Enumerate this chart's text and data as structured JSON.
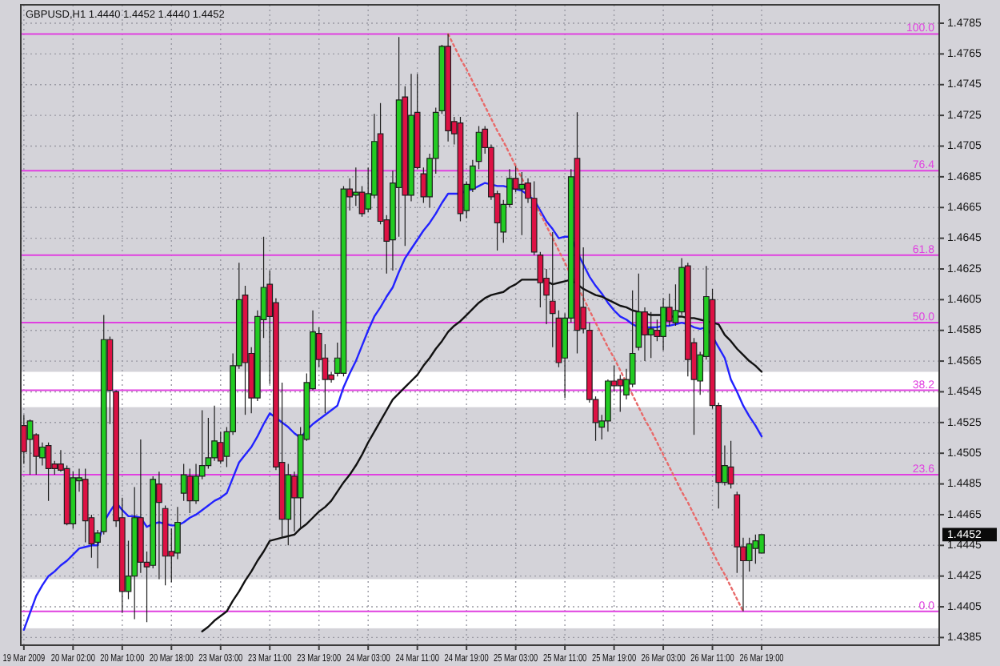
{
  "chart_data": {
    "type": "candlestick",
    "title": "GBPUSD,H1 1.4440 1.4452 1.4440 1.4452",
    "categories": [
      "19 Mar 2009",
      null,
      null,
      null,
      null,
      null,
      null,
      null,
      "20 Mar 02:00",
      null,
      null,
      null,
      null,
      null,
      null,
      null,
      "20 Mar 10:00",
      null,
      null,
      null,
      null,
      null,
      null,
      null,
      "20 Mar 18:00",
      null,
      null,
      null,
      null,
      null,
      null,
      null,
      "23 Mar 03:00",
      null,
      null,
      null,
      null,
      null,
      null,
      null,
      "23 Mar 11:00",
      null,
      null,
      null,
      null,
      null,
      null,
      null,
      "23 Mar 19:00",
      null,
      null,
      null,
      null,
      null,
      null,
      null,
      "24 Mar 03:00",
      null,
      null,
      null,
      null,
      null,
      null,
      null,
      "24 Mar 11:00",
      null,
      null,
      null,
      null,
      null,
      null,
      null,
      "24 Mar 19:00",
      null,
      null,
      null,
      null,
      null,
      null,
      null,
      "25 Mar 03:00",
      null,
      null,
      null,
      null,
      null,
      null,
      null,
      "25 Mar 11:00",
      null,
      null,
      null,
      null,
      null,
      null,
      null,
      "25 Mar 19:00",
      null,
      null,
      null,
      null,
      null,
      null,
      null,
      "26 Mar 03:00",
      null,
      null,
      null,
      null,
      null,
      null,
      null,
      "26 Mar 11:00",
      null,
      null,
      null,
      null,
      null,
      null,
      null,
      "26 Mar 19:00"
    ],
    "ohlc": [
      [
        1.4523,
        1.453,
        1.4498,
        1.4506
      ],
      [
        1.4514,
        1.4527,
        1.4491,
        1.4526
      ],
      [
        1.4517,
        1.4518,
        1.4491,
        1.4503
      ],
      [
        1.4502,
        1.4512,
        1.4497,
        1.4509
      ],
      [
        1.451,
        1.4512,
        1.4474,
        1.4495
      ],
      [
        1.4498,
        1.45,
        1.4491,
        1.4495
      ],
      [
        1.4498,
        1.4507,
        1.4493,
        1.4494
      ],
      [
        1.4495,
        1.4497,
        1.4458,
        1.4459
      ],
      [
        1.4459,
        1.4493,
        1.4456,
        1.4489
      ],
      [
        1.4487,
        1.4495,
        1.448,
        1.4489
      ],
      [
        1.4488,
        1.4495,
        1.4447,
        1.4461
      ],
      [
        1.4463,
        1.4465,
        1.4437,
        1.4446
      ],
      [
        1.4447,
        1.4455,
        1.443,
        1.4453
      ],
      [
        1.4454,
        1.4595,
        1.4452,
        1.4579
      ],
      [
        1.4579,
        1.4581,
        1.4524,
        1.4546
      ],
      [
        1.4545,
        1.4546,
        1.4457,
        1.4461
      ],
      [
        1.4463,
        1.4476,
        1.4401,
        1.4415
      ],
      [
        1.4415,
        1.4448,
        1.441,
        1.4425
      ],
      [
        1.4425,
        1.4483,
        1.4397,
        1.4463
      ],
      [
        1.4463,
        1.4514,
        1.4427,
        1.4434
      ],
      [
        1.4434,
        1.4441,
        1.4395,
        1.4431
      ],
      [
        1.4432,
        1.449,
        1.443,
        1.4488
      ],
      [
        1.4485,
        1.4493,
        1.4423,
        1.4473
      ],
      [
        1.4469,
        1.4471,
        1.4419,
        1.4438
      ],
      [
        1.4441,
        1.4456,
        1.4421,
        1.4438
      ],
      [
        1.444,
        1.447,
        1.4436,
        1.446
      ],
      [
        1.4479,
        1.4498,
        1.4474,
        1.4491
      ],
      [
        1.449,
        1.4495,
        1.4466,
        1.4474
      ],
      [
        1.4474,
        1.4498,
        1.4472,
        1.449
      ],
      [
        1.449,
        1.4533,
        1.4488,
        1.4497
      ],
      [
        1.4497,
        1.4528,
        1.4495,
        1.4502
      ],
      [
        1.4502,
        1.4536,
        1.45,
        1.4513
      ],
      [
        1.4512,
        1.4519,
        1.4498,
        1.45
      ],
      [
        1.4503,
        1.4522,
        1.4496,
        1.4519
      ],
      [
        1.4519,
        1.457,
        1.4517,
        1.4562
      ],
      [
        1.4562,
        1.4629,
        1.456,
        1.4605
      ],
      [
        1.4608,
        1.4614,
        1.453,
        1.4564
      ],
      [
        1.457,
        1.4574,
        1.4531,
        1.4541
      ],
      [
        1.4541,
        1.4598,
        1.4539,
        1.4594
      ],
      [
        1.4592,
        1.4646,
        1.458,
        1.4613
      ],
      [
        1.4615,
        1.4624,
        1.455,
        1.4594
      ],
      [
        1.4603,
        1.4606,
        1.4494,
        1.4496
      ],
      [
        1.4499,
        1.4551,
        1.445,
        1.4462
      ],
      [
        1.4462,
        1.4498,
        1.4445,
        1.4491
      ],
      [
        1.449,
        1.4493,
        1.4454,
        1.4476
      ],
      [
        1.4476,
        1.4522,
        1.4456,
        1.4517
      ],
      [
        1.4514,
        1.4557,
        1.4513,
        1.4551
      ],
      [
        1.4547,
        1.4598,
        1.4546,
        1.4584
      ],
      [
        1.4583,
        1.4587,
        1.4561,
        1.4566
      ],
      [
        1.4567,
        1.4576,
        1.4531,
        1.4553
      ],
      [
        1.4556,
        1.4558,
        1.4551,
        1.4553
      ],
      [
        1.4557,
        1.4577,
        1.4555,
        1.4567
      ],
      [
        1.4557,
        1.4679,
        1.4555,
        1.4677
      ],
      [
        1.4677,
        1.4684,
        1.4663,
        1.4672
      ],
      [
        1.4673,
        1.4691,
        1.4666,
        1.4675
      ],
      [
        1.4675,
        1.4679,
        1.4659,
        1.4661
      ],
      [
        1.4664,
        1.4691,
        1.4662,
        1.4674
      ],
      [
        1.4673,
        1.4726,
        1.4671,
        1.4708
      ],
      [
        1.4713,
        1.4733,
        1.4654,
        1.4656
      ],
      [
        1.4657,
        1.466,
        1.4622,
        1.4643
      ],
      [
        1.4644,
        1.4689,
        1.4624,
        1.4681
      ],
      [
        1.4678,
        1.4776,
        1.4646,
        1.4735
      ],
      [
        1.4737,
        1.4744,
        1.464,
        1.4673
      ],
      [
        1.4673,
        1.4752,
        1.4669,
        1.4725
      ],
      [
        1.4727,
        1.4752,
        1.469,
        1.4691
      ],
      [
        1.4687,
        1.4691,
        1.4668,
        1.4672
      ],
      [
        1.4672,
        1.47,
        1.4665,
        1.4697
      ],
      [
        1.4697,
        1.473,
        1.4687,
        1.4727
      ],
      [
        1.4728,
        1.4771,
        1.4726,
        1.477
      ],
      [
        1.477,
        1.4778,
        1.4708,
        1.4715
      ],
      [
        1.4721,
        1.4724,
        1.4706,
        1.4713
      ],
      [
        1.472,
        1.4724,
        1.4656,
        1.4661
      ],
      [
        1.4663,
        1.4682,
        1.4658,
        1.468
      ],
      [
        1.4677,
        1.4696,
        1.4675,
        1.4692
      ],
      [
        1.4695,
        1.4718,
        1.469,
        1.4714
      ],
      [
        1.4716,
        1.4718,
        1.47,
        1.4704
      ],
      [
        1.4704,
        1.4706,
        1.467,
        1.4672
      ],
      [
        1.4674,
        1.4676,
        1.4637,
        1.4655
      ],
      [
        1.4649,
        1.467,
        1.4642,
        1.4667
      ],
      [
        1.4667,
        1.469,
        1.4665,
        1.4684
      ],
      [
        1.4684,
        1.4692,
        1.4675,
        1.4677
      ],
      [
        1.4677,
        1.4688,
        1.4647,
        1.468
      ],
      [
        1.4681,
        1.4684,
        1.4668,
        1.4671
      ],
      [
        1.4671,
        1.4682,
        1.4634,
        1.4636
      ],
      [
        1.4634,
        1.4636,
        1.46,
        1.4616
      ],
      [
        1.4619,
        1.4625,
        1.4589,
        1.4608
      ],
      [
        1.4604,
        1.4649,
        1.4574,
        1.4596
      ],
      [
        1.4593,
        1.4598,
        1.4561,
        1.4564
      ],
      [
        1.4567,
        1.4596,
        1.4541,
        1.4593
      ],
      [
        1.4593,
        1.469,
        1.459,
        1.4685
      ],
      [
        1.4697,
        1.4727,
        1.457,
        1.4585
      ],
      [
        1.46,
        1.4639,
        1.4583,
        1.4586
      ],
      [
        1.4585,
        1.459,
        1.4538,
        1.454
      ],
      [
        1.454,
        1.4542,
        1.4513,
        1.4525
      ],
      [
        1.4522,
        1.453,
        1.4514,
        1.4526
      ],
      [
        1.4526,
        1.4553,
        1.4519,
        1.4552
      ],
      [
        1.4552,
        1.4562,
        1.4545,
        1.4549
      ],
      [
        1.4553,
        1.4556,
        1.4532,
        1.4549
      ],
      [
        1.4543,
        1.456,
        1.454,
        1.4553
      ],
      [
        1.455,
        1.4611,
        1.4548,
        1.457
      ],
      [
        1.4574,
        1.4622,
        1.4572,
        1.4597
      ],
      [
        1.4597,
        1.46,
        1.4565,
        1.4582
      ],
      [
        1.4582,
        1.4597,
        1.4567,
        1.4586
      ],
      [
        1.4585,
        1.4592,
        1.4578,
        1.4581
      ],
      [
        1.4581,
        1.4606,
        1.4572,
        1.46
      ],
      [
        1.46,
        1.4609,
        1.4588,
        1.4591
      ],
      [
        1.459,
        1.4615,
        1.4588,
        1.4598
      ],
      [
        1.4597,
        1.4632,
        1.4595,
        1.4626
      ],
      [
        1.4627,
        1.4629,
        1.4555,
        1.4566
      ],
      [
        1.4577,
        1.458,
        1.4517,
        1.4553
      ],
      [
        1.4552,
        1.4571,
        1.4543,
        1.4569
      ],
      [
        1.4568,
        1.4627,
        1.4566,
        1.4607
      ],
      [
        1.4605,
        1.4612,
        1.4534,
        1.4536
      ],
      [
        1.4536,
        1.4538,
        1.4469,
        1.4486
      ],
      [
        1.4486,
        1.451,
        1.4484,
        1.4497
      ],
      [
        1.4496,
        1.4513,
        1.4482,
        1.4485
      ],
      [
        1.4478,
        1.448,
        1.4427,
        1.4444
      ],
      [
        1.4444,
        1.445,
        1.4402,
        1.4435
      ],
      [
        1.4435,
        1.445,
        1.4428,
        1.4446
      ],
      [
        1.4443,
        1.4452,
        1.4433,
        1.4448
      ],
      [
        1.444,
        1.4452,
        1.444,
        1.4452
      ]
    ],
    "colors": [
      "#dd1144",
      "#22cc22",
      "#dd1144",
      "#22cc22",
      "#dd1144",
      "#dd1144",
      "#dd1144",
      "#dd1144",
      "#22cc22",
      "#22cc22",
      "#dd1144",
      "#dd1144",
      "#22cc22",
      "#22cc22",
      "#dd1144",
      "#dd1144",
      "#dd1144",
      "#22cc22",
      "#22cc22",
      "#dd1144",
      "#dd1144",
      "#22cc22",
      "#dd1144",
      "#dd1144",
      "#dd1144",
      "#22cc22",
      "#22cc22",
      "#dd1144",
      "#22cc22",
      "#22cc22",
      "#22cc22",
      "#22cc22",
      "#dd1144",
      "#22cc22",
      "#22cc22",
      "#22cc22",
      "#dd1144",
      "#dd1144",
      "#22cc22",
      "#22cc22",
      "#dd1144",
      "#dd1144",
      "#dd1144",
      "#22cc22",
      "#dd1144",
      "#22cc22",
      "#22cc22",
      "#22cc22",
      "#dd1144",
      "#dd1144",
      "#dd1144",
      "#22cc22",
      "#22cc22",
      "#dd1144",
      "#22cc22",
      "#dd1144",
      "#22cc22",
      "#22cc22",
      "#dd1144",
      "#dd1144",
      "#22cc22",
      "#22cc22",
      "#dd1144",
      "#22cc22",
      "#dd1144",
      "#dd1144",
      "#22cc22",
      "#22cc22",
      "#22cc22",
      "#dd1144",
      "#dd1144",
      "#dd1144",
      "#22cc22",
      "#22cc22",
      "#22cc22",
      "#dd1144",
      "#dd1144",
      "#dd1144",
      "#22cc22",
      "#22cc22",
      "#dd1144",
      "#22cc22",
      "#dd1144",
      "#dd1144",
      "#dd1144",
      "#dd1144",
      "#dd1144",
      "#dd1144",
      "#22cc22",
      "#22cc22",
      "#dd1144",
      "#dd1144",
      "#dd1144",
      "#dd1144",
      "#22cc22",
      "#22cc22",
      "#dd1144",
      "#dd1144",
      "#22cc22",
      "#22cc22",
      "#22cc22",
      "#dd1144",
      "#22cc22",
      "#dd1144",
      "#22cc22",
      "#dd1144",
      "#22cc22",
      "#22cc22",
      "#dd1144",
      "#dd1144",
      "#22cc22",
      "#22cc22",
      "#dd1144",
      "#dd1144",
      "#22cc22",
      "#dd1144",
      "#dd1144",
      "#dd1144",
      "#22cc22",
      "#22cc22",
      "#22cc22"
    ],
    "series": [
      {
        "type": "line",
        "color": "#2222ff",
        "values": [
          1.439,
          1.4401,
          1.4412,
          1.4419,
          1.4425,
          1.4428,
          1.4432,
          1.4435,
          1.4439,
          1.4443,
          1.4444,
          1.4445,
          1.4445,
          1.446,
          1.4467,
          1.4473,
          1.4468,
          1.4464,
          1.4464,
          1.4463,
          1.4457,
          1.4459,
          1.446,
          1.4459,
          1.4458,
          1.4458,
          1.446,
          1.4463,
          1.4465,
          1.4468,
          1.4471,
          1.4474,
          1.4476,
          1.4479,
          1.4489,
          1.4499,
          1.4504,
          1.4509,
          1.4516,
          1.4524,
          1.4531,
          1.4528,
          1.4525,
          1.4522,
          1.4518,
          1.4515,
          1.452,
          1.4524,
          1.4527,
          1.453,
          1.4533,
          1.4536,
          1.4548,
          1.4557,
          1.4565,
          1.4575,
          1.4585,
          1.4594,
          1.46,
          1.4607,
          1.4613,
          1.4623,
          1.4632,
          1.4638,
          1.4644,
          1.465,
          1.4655,
          1.4661,
          1.4668,
          1.4674,
          1.4674,
          1.4674,
          1.4676,
          1.4677,
          1.4679,
          1.4681,
          1.468,
          1.4679,
          1.4679,
          1.4678,
          1.4677,
          1.4676,
          1.4673,
          1.467,
          1.4663,
          1.4656,
          1.4651,
          1.4645,
          1.4646,
          1.4646,
          1.4636,
          1.4628,
          1.462,
          1.4614,
          1.4609,
          1.4603,
          1.4598,
          1.4594,
          1.4592,
          1.4589,
          1.4587,
          1.4587,
          1.4587,
          1.4587,
          1.4588,
          1.4588,
          1.4589,
          1.459,
          1.4589,
          1.4587,
          1.4586,
          1.4587,
          1.4581,
          1.4574,
          1.4567,
          1.4553,
          1.4545,
          1.4536,
          1.4529,
          1.4523,
          1.4516
        ]
      },
      {
        "type": "line",
        "color": "#111111",
        "values": [
          null,
          null,
          null,
          null,
          null,
          null,
          null,
          null,
          null,
          null,
          null,
          null,
          null,
          null,
          null,
          null,
          null,
          null,
          null,
          null,
          null,
          null,
          null,
          null,
          null,
          null,
          null,
          null,
          null,
          1.4389,
          1.4392,
          1.4396,
          1.4399,
          1.4402,
          1.4409,
          1.4415,
          1.4422,
          1.4428,
          1.4435,
          1.4441,
          1.4448,
          1.4449,
          1.445,
          1.4451,
          1.4452,
          1.4456,
          1.4459,
          1.4463,
          1.4467,
          1.447,
          1.4474,
          1.448,
          1.4486,
          1.4491,
          1.4497,
          1.4504,
          1.4512,
          1.4519,
          1.4526,
          1.4533,
          1.454,
          1.4544,
          1.4548,
          1.4552,
          1.4556,
          1.4562,
          1.4567,
          1.4573,
          1.4578,
          1.4584,
          1.4588,
          1.4591,
          1.4595,
          1.4599,
          1.4603,
          1.4606,
          1.4608,
          1.4609,
          1.461,
          1.4613,
          1.4615,
          1.4618,
          1.4618,
          1.4618,
          1.4618,
          1.4617,
          1.4615,
          1.4616,
          1.4617,
          1.4618,
          1.4615,
          1.4612,
          1.461,
          1.4608,
          1.4607,
          1.4605,
          1.4603,
          1.4601,
          1.46,
          1.4598,
          1.4597,
          1.4596,
          1.4595,
          1.4595,
          1.4595,
          1.4594,
          1.4594,
          1.4594,
          1.4593,
          1.4593,
          1.4592,
          1.4591,
          1.459,
          1.4589,
          1.4582,
          1.4578,
          1.4573,
          1.4569,
          1.4565,
          1.4562,
          1.4558
        ]
      },
      {
        "type": "line",
        "color": "#e86a6a",
        "line_style": "dotted",
        "values": [
          null,
          null,
          null,
          null,
          null,
          null,
          null,
          null,
          null,
          null,
          null,
          null,
          null,
          null,
          null,
          null,
          null,
          null,
          null,
          null,
          null,
          null,
          null,
          null,
          null,
          null,
          null,
          null,
          null,
          null,
          null,
          null,
          null,
          null,
          null,
          null,
          null,
          null,
          null,
          null,
          null,
          null,
          null,
          null,
          null,
          null,
          null,
          null,
          null,
          null,
          null,
          null,
          null,
          null,
          null,
          null,
          null,
          null,
          null,
          null,
          null,
          null,
          null,
          null,
          null,
          null,
          null,
          null,
          null,
          1.4778,
          1.477,
          1.4762,
          1.4755,
          1.4747,
          1.4739,
          1.4731,
          1.4723,
          1.4715,
          1.4708,
          1.47,
          1.4692,
          1.4684,
          1.4676,
          1.4668,
          1.4661,
          1.4653,
          1.4645,
          1.4637,
          1.4629,
          1.4621,
          1.4614,
          1.4606,
          1.4598,
          1.459,
          1.4582,
          1.4574,
          1.4567,
          1.4559,
          1.4551,
          1.4543,
          1.4535,
          1.4527,
          1.452,
          1.4512,
          1.4504,
          1.4496,
          1.4488,
          1.448,
          1.4473,
          1.4465,
          1.4457,
          1.4449,
          1.4441,
          1.4433,
          1.4426,
          1.4418,
          1.441,
          1.4402,
          null,
          null,
          null
        ]
      }
    ],
    "ylim": [
      1.438,
      1.4797
    ],
    "yticks": [
      1.4385,
      1.4405,
      1.4425,
      1.4445,
      1.4465,
      1.4485,
      1.4505,
      1.4525,
      1.4545,
      1.4565,
      1.4585,
      1.4605,
      1.4625,
      1.4645,
      1.4665,
      1.4685,
      1.4705,
      1.4725,
      1.4745,
      1.4765,
      1.4785
    ],
    "grid": true,
    "ref_lines": [
      {
        "axis": "y",
        "value": 1.4778,
        "color": "#e040e0"
      },
      {
        "axis": "y",
        "value": 1.4689,
        "color": "#e040e0"
      },
      {
        "axis": "y",
        "value": 1.4634,
        "color": "#e040e0"
      },
      {
        "axis": "y",
        "value": 1.459,
        "color": "#e040e0"
      },
      {
        "axis": "y",
        "value": 1.4546,
        "color": "#e040e0"
      },
      {
        "axis": "y",
        "value": 1.4491,
        "color": "#e040e0"
      },
      {
        "axis": "y",
        "value": 1.4402,
        "color": "#e040e0"
      }
    ],
    "bands": [
      {
        "axis": "y",
        "from": 1.4391,
        "to": 1.4423,
        "color": "#ffffff"
      },
      {
        "axis": "y",
        "from": 1.4535,
        "to": 1.4558,
        "color": "#ffffff"
      }
    ],
    "annotations": [
      "1.4452",
      {
        "text": "100.0",
        "y": 1.4778
      },
      {
        "text": "76.4",
        "y": 1.4689
      },
      {
        "text": "61.8",
        "y": 1.4634
      },
      {
        "text": "50.0",
        "y": 1.459
      },
      {
        "text": "38.2",
        "y": 1.4546
      },
      {
        "text": "23.6",
        "y": 1.4491
      },
      {
        "text": "0.0",
        "y": 1.4402
      }
    ]
  }
}
